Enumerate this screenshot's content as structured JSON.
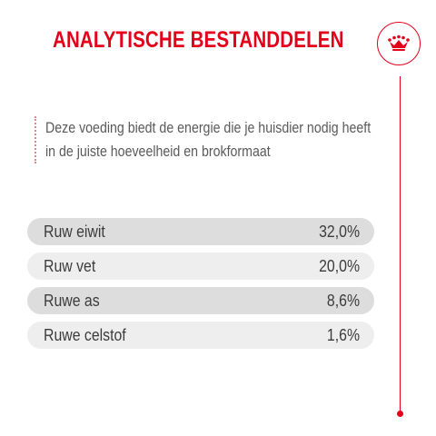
{
  "title": "ANALYTISCHE BESTANDDELEN",
  "logo": {
    "icon": "crown-icon",
    "color": "#e2001a"
  },
  "intro": {
    "line1": "Deze voeding biedt de energie die je huisdier nodig heeft",
    "line2": "in de juiste hoeveelheid en brokformaat"
  },
  "nutrients": [
    {
      "label": "Ruw eiwit",
      "value": "32,0%"
    },
    {
      "label": "Ruw vet",
      "value": "20,0%"
    },
    {
      "label": "Ruwe as",
      "value": "8,6%"
    },
    {
      "label": "Ruwe celstof",
      "value": "1,6%"
    }
  ],
  "colors": {
    "accent": "#e2001a",
    "row_dark": "#dddddd",
    "row_light": "#eeeeee"
  }
}
